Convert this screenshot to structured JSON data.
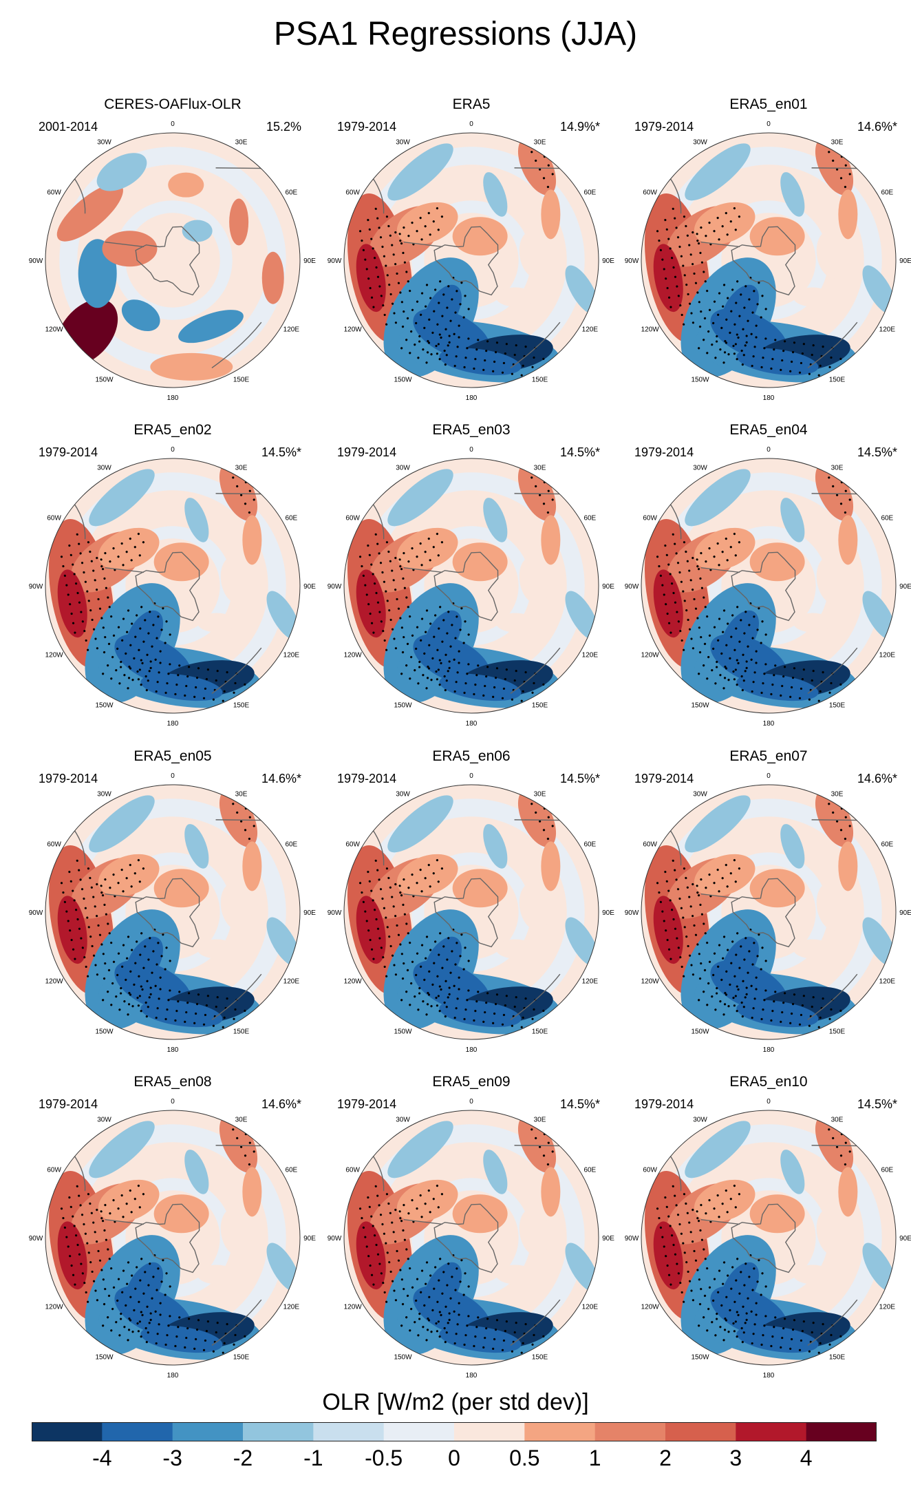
{
  "title": "PSA1 Regressions (JJA)",
  "chart_data": {
    "type": "polar-map-grid",
    "title": "PSA1 Regressions (JJA)",
    "variable": "OLR",
    "units_label": "OLR [W/m2 (per std dev)]",
    "longitude_labels": [
      "0",
      "30E",
      "60E",
      "90E",
      "120E",
      "150E",
      "180",
      "150W",
      "120W",
      "90W",
      "60W",
      "30W"
    ],
    "panels": [
      {
        "name": "CERES-OAFlux-OLR",
        "period": "2001-2014",
        "variance_explained": "15.2%"
      },
      {
        "name": "ERA5",
        "period": "1979-2014",
        "variance_explained": "14.9%*"
      },
      {
        "name": "ERA5_en01",
        "period": "1979-2014",
        "variance_explained": "14.6%*"
      },
      {
        "name": "ERA5_en02",
        "period": "1979-2014",
        "variance_explained": "14.5%*"
      },
      {
        "name": "ERA5_en03",
        "period": "1979-2014",
        "variance_explained": "14.5%*"
      },
      {
        "name": "ERA5_en04",
        "period": "1979-2014",
        "variance_explained": "14.5%*"
      },
      {
        "name": "ERA5_en05",
        "period": "1979-2014",
        "variance_explained": "14.6%*"
      },
      {
        "name": "ERA5_en06",
        "period": "1979-2014",
        "variance_explained": "14.5%*"
      },
      {
        "name": "ERA5_en07",
        "period": "1979-2014",
        "variance_explained": "14.6%*"
      },
      {
        "name": "ERA5_en08",
        "period": "1979-2014",
        "variance_explained": "14.6%*"
      },
      {
        "name": "ERA5_en09",
        "period": "1979-2014",
        "variance_explained": "14.5%*"
      },
      {
        "name": "ERA5_en10",
        "period": "1979-2014",
        "variance_explained": "14.5%*"
      }
    ],
    "colorbar": {
      "levels": [
        "-4",
        "-3",
        "-2",
        "-1",
        "-0.5",
        "0",
        "0.5",
        "1",
        "2",
        "3",
        "4"
      ],
      "colors": [
        "#0d3563",
        "#2166ac",
        "#4393c3",
        "#92c5de",
        "#c9dfee",
        "#e8eef5",
        "#fae7dd",
        "#f4a582",
        "#e58368",
        "#d6604d",
        "#b2182b",
        "#67001f"
      ]
    }
  }
}
